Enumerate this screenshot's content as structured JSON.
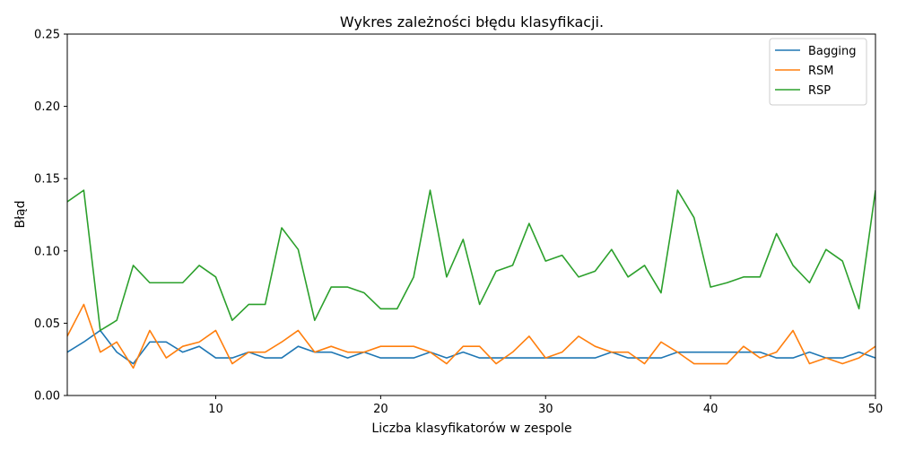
{
  "chart_data": {
    "type": "line",
    "title": "Wykres zależności błędu klasyfikacji.",
    "xlabel": "Liczba klasyfikatorów w zespole",
    "ylabel": "Błąd",
    "xlim": [
      1,
      50
    ],
    "ylim": [
      0,
      0.25
    ],
    "xticks": [
      10,
      20,
      30,
      40,
      50
    ],
    "yticks": [
      0.0,
      0.05,
      0.1,
      0.15,
      0.2,
      0.25
    ],
    "xtick_labels": [
      "10",
      "20",
      "30",
      "40",
      "50"
    ],
    "ytick_labels": [
      "0.00",
      "0.05",
      "0.10",
      "0.15",
      "0.20",
      "0.25"
    ],
    "grid": false,
    "legend_position": "top-right",
    "x": [
      1,
      2,
      3,
      4,
      5,
      6,
      7,
      8,
      9,
      10,
      11,
      12,
      13,
      14,
      15,
      16,
      17,
      18,
      19,
      20,
      21,
      22,
      23,
      24,
      25,
      26,
      27,
      28,
      29,
      30,
      31,
      32,
      33,
      34,
      35,
      36,
      37,
      38,
      39,
      40,
      41,
      42,
      43,
      44,
      45,
      46,
      47,
      48,
      49,
      50
    ],
    "series": [
      {
        "name": "Bagging",
        "color": "#1f77b4",
        "values": [
          0.03,
          0.037,
          0.045,
          0.03,
          0.022,
          0.037,
          0.037,
          0.03,
          0.034,
          0.026,
          0.026,
          0.03,
          0.026,
          0.026,
          0.034,
          0.03,
          0.03,
          0.026,
          0.03,
          0.026,
          0.026,
          0.026,
          0.03,
          0.026,
          0.03,
          0.026,
          0.026,
          0.026,
          0.026,
          0.026,
          0.026,
          0.026,
          0.026,
          0.03,
          0.026,
          0.026,
          0.026,
          0.03,
          0.03,
          0.03,
          0.03,
          0.03,
          0.03,
          0.026,
          0.026,
          0.03,
          0.026,
          0.026,
          0.03,
          0.026
        ]
      },
      {
        "name": "RSM",
        "color": "#ff7f0e",
        "values": [
          0.041,
          0.063,
          0.03,
          0.037,
          0.019,
          0.045,
          0.026,
          0.034,
          0.037,
          0.045,
          0.022,
          0.03,
          0.03,
          0.037,
          0.045,
          0.03,
          0.034,
          0.03,
          0.03,
          0.034,
          0.034,
          0.034,
          0.03,
          0.022,
          0.034,
          0.034,
          0.022,
          0.03,
          0.041,
          0.026,
          0.03,
          0.041,
          0.034,
          0.03,
          0.03,
          0.022,
          0.037,
          0.03,
          0.022,
          0.022,
          0.022,
          0.034,
          0.026,
          0.03,
          0.045,
          0.022,
          0.026,
          0.022,
          0.026,
          0.034
        ]
      },
      {
        "name": "RSP",
        "color": "#2ca02c",
        "values": [
          0.134,
          0.142,
          0.045,
          0.052,
          0.09,
          0.078,
          0.078,
          0.078,
          0.09,
          0.082,
          0.052,
          0.063,
          0.063,
          0.116,
          0.101,
          0.052,
          0.075,
          0.075,
          0.071,
          0.06,
          0.06,
          0.082,
          0.142,
          0.082,
          0.108,
          0.063,
          0.086,
          0.09,
          0.119,
          0.093,
          0.097,
          0.082,
          0.086,
          0.101,
          0.082,
          0.09,
          0.071,
          0.142,
          0.123,
          0.075,
          0.078,
          0.082,
          0.082,
          0.112,
          0.09,
          0.078,
          0.101,
          0.093,
          0.06,
          0.142
        ]
      }
    ]
  }
}
